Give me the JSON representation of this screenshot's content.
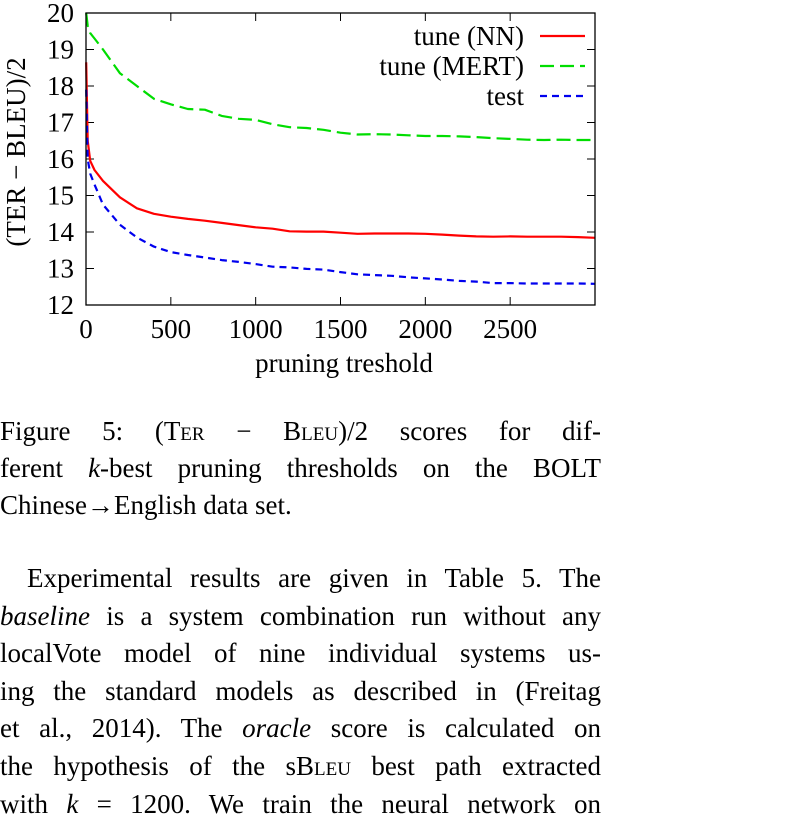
{
  "chart_data": {
    "type": "line",
    "title": "",
    "xlabel": "pruning treshold",
    "ylabel": "(TER − BLEU)/2",
    "xlim": [
      0,
      3000
    ],
    "ylim": [
      12,
      20
    ],
    "xticks": [
      0,
      500,
      1000,
      1500,
      2000,
      2500
    ],
    "yticks": [
      12,
      13,
      14,
      15,
      16,
      17,
      18,
      19,
      20
    ],
    "grid": false,
    "legend_position": "top-right",
    "series": [
      {
        "name": "tune (NN)",
        "color": "#ff0000",
        "dash": "solid",
        "x": [
          1,
          10,
          25,
          50,
          100,
          200,
          300,
          400,
          500,
          600,
          700,
          800,
          900,
          1000,
          1100,
          1200,
          1300,
          1400,
          1500,
          1600,
          1700,
          1800,
          1900,
          2000,
          2100,
          2200,
          2300,
          2400,
          2500,
          2600,
          2700,
          2800,
          2900,
          3000
        ],
        "y": [
          18.65,
          16.5,
          15.95,
          15.7,
          15.4,
          14.95,
          14.65,
          14.5,
          14.42,
          14.36,
          14.31,
          14.25,
          14.19,
          14.13,
          14.09,
          14.02,
          14.01,
          14.01,
          13.98,
          13.95,
          13.96,
          13.96,
          13.96,
          13.95,
          13.93,
          13.9,
          13.88,
          13.87,
          13.88,
          13.87,
          13.87,
          13.87,
          13.86,
          13.84
        ]
      },
      {
        "name": "tune (MERT)",
        "color": "#00dd00",
        "dash": "long",
        "x": [
          1,
          10,
          25,
          50,
          100,
          200,
          300,
          400,
          500,
          600,
          700,
          800,
          900,
          1000,
          1100,
          1200,
          1300,
          1400,
          1500,
          1600,
          1700,
          1800,
          1900,
          2000,
          2100,
          2200,
          2300,
          2400,
          2500,
          2600,
          2700,
          2800,
          2900,
          3000
        ],
        "y": [
          20.0,
          19.65,
          19.45,
          19.3,
          19.0,
          18.35,
          18.0,
          17.65,
          17.5,
          17.37,
          17.35,
          17.18,
          17.1,
          17.07,
          16.95,
          16.87,
          16.85,
          16.8,
          16.72,
          16.67,
          16.68,
          16.67,
          16.65,
          16.63,
          16.63,
          16.62,
          16.6,
          16.57,
          16.55,
          16.53,
          16.52,
          16.53,
          16.52,
          16.52
        ]
      },
      {
        "name": "test",
        "color": "#0000ee",
        "dash": "short",
        "x": [
          1,
          10,
          25,
          50,
          100,
          200,
          300,
          400,
          500,
          600,
          700,
          800,
          900,
          1000,
          1100,
          1200,
          1300,
          1400,
          1500,
          1600,
          1700,
          1800,
          1900,
          2000,
          2100,
          2200,
          2300,
          2400,
          2500,
          2600,
          2700,
          2800,
          2900,
          3000
        ],
        "y": [
          17.9,
          16.0,
          15.6,
          15.3,
          14.75,
          14.2,
          13.85,
          13.6,
          13.45,
          13.37,
          13.3,
          13.23,
          13.18,
          13.12,
          13.05,
          13.03,
          12.99,
          12.97,
          12.9,
          12.84,
          12.82,
          12.8,
          12.76,
          12.73,
          12.7,
          12.66,
          12.64,
          12.6,
          12.6,
          12.59,
          12.59,
          12.59,
          12.59,
          12.58
        ]
      }
    ]
  },
  "caption": {
    "line1": {
      "label": "Figure 5:",
      "open": "(",
      "ter": "Ter",
      "minus": " − ",
      "bleu": "Bleu",
      "close": ")/2",
      "rest": "scores for dif-"
    },
    "line2": {
      "pre": "ferent ",
      "k": "k",
      "post": "-best pruning thresholds on the BOLT"
    },
    "line3": "Chinese→English data set."
  },
  "paragraph": {
    "line1": "Experimental results are given in Table 5. The",
    "line2": {
      "italic": "baseline",
      "post": " is a system combination run without any"
    },
    "line3": "localVote model of nine individual systems us-",
    "line4": "ing the standard models as described in (Freitag",
    "line5": {
      "pre": "et al., 2014). The ",
      "italic": "oracle",
      "post": " score is calculated on"
    },
    "line6": {
      "pre": "the hypothesis of the s",
      "sc": "Bleu",
      "post": " best path extracted"
    },
    "line7": {
      "pre": "with ",
      "k": "k",
      "eq": " = 1200. We train the neural network on"
    }
  }
}
